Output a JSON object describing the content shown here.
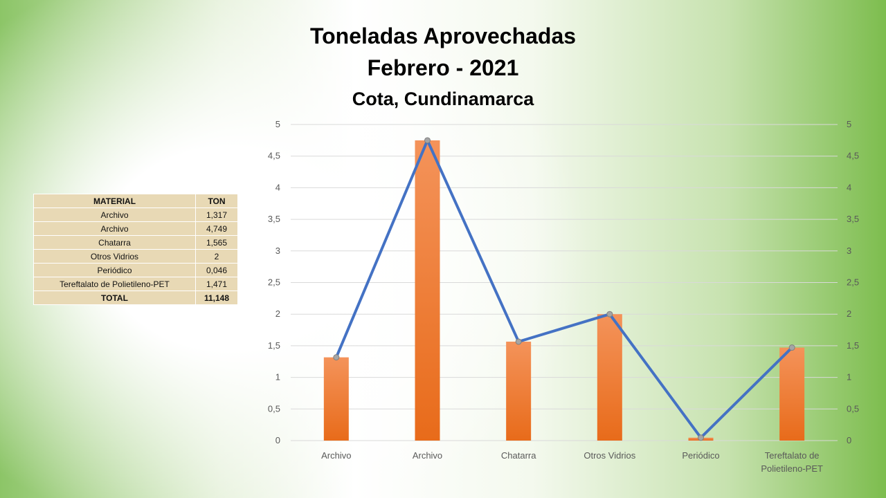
{
  "table": {
    "headers": [
      "MATERIAL",
      "TON"
    ],
    "rows": [
      [
        "Archivo",
        "1,317"
      ],
      [
        "Archivo",
        "4,749"
      ],
      [
        "Chatarra",
        "1,565"
      ],
      [
        "Otros Vidrios",
        "2"
      ],
      [
        "Periódico",
        "0,046"
      ],
      [
        "Tereftalato de Polietileno-PET",
        "1,471"
      ]
    ],
    "total": [
      "TOTAL",
      "11,148"
    ]
  },
  "chart_data": {
    "type": "bar",
    "title": "Toneladas Aprovechadas",
    "subtitle": "Febrero - 2021",
    "subtitle2": "Cota, Cundinamarca",
    "categories": [
      [
        "Archivo"
      ],
      [
        "Archivo"
      ],
      [
        "Chatarra"
      ],
      [
        "Otros Vidrios"
      ],
      [
        "Periódico"
      ],
      [
        "Tereftalato de",
        "Polietileno-PET"
      ]
    ],
    "series": [
      {
        "name": "TON (bar)",
        "type": "bar",
        "values": [
          1.317,
          4.749,
          1.565,
          2,
          0.046,
          1.471
        ],
        "color": "#ed7d31"
      },
      {
        "name": "TON (line)",
        "type": "line",
        "values": [
          1.317,
          4.749,
          1.565,
          2,
          0.046,
          1.471
        ],
        "color": "#4472c4"
      }
    ],
    "yticks": [
      "0",
      "0,5",
      "1",
      "1,5",
      "2",
      "2,5",
      "3",
      "3,5",
      "4",
      "4,5",
      "5"
    ],
    "ylim": [
      0,
      5
    ],
    "y2lim": [
      0,
      5
    ],
    "grid": true,
    "legend": "none",
    "xlabel": "",
    "ylabel": ""
  }
}
